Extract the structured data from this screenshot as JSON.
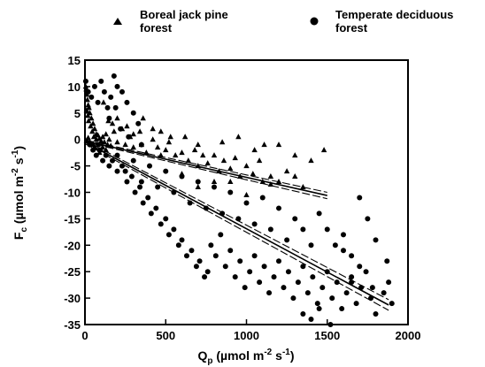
{
  "chart_data": {
    "type": "scatter",
    "xlabel": "Q",
    "xlabel_sub": "p",
    "xlabel_units": " (µmol m",
    "xlabel_exp": "-2",
    "xlabel_units2": " s",
    "xlabel_exp2": "-1",
    "xlabel_close": ")",
    "ylabel": "F",
    "ylabel_sub": "c",
    "ylabel_units": " (µmol m",
    "ylabel_exp": "-2",
    "ylabel_units2": " s",
    "ylabel_exp2": "-1",
    "ylabel_close": ")",
    "xlim": [
      0,
      2000
    ],
    "ylim": [
      -35,
      15
    ],
    "xticks": [
      0,
      500,
      1000,
      1500,
      2000
    ],
    "yticks": [
      15,
      10,
      5,
      0,
      -5,
      -10,
      -15,
      -20,
      -25,
      -30,
      -35
    ],
    "legend_position": "top",
    "colors": {
      "marker": "#000000",
      "line": "#000000"
    },
    "series": [
      {
        "name": "Boreal jack pine forest",
        "name_lines": [
          "Boreal jack pine",
          "forest"
        ],
        "marker": "triangle",
        "points": [
          [
            5,
            10
          ],
          [
            8,
            9.5
          ],
          [
            12,
            8.5
          ],
          [
            15,
            7.5
          ],
          [
            20,
            6.5
          ],
          [
            25,
            6
          ],
          [
            10,
            5.5
          ],
          [
            30,
            5
          ],
          [
            18,
            4.5
          ],
          [
            40,
            4
          ],
          [
            22,
            3.5
          ],
          [
            50,
            3
          ],
          [
            35,
            2.5
          ],
          [
            60,
            2
          ],
          [
            45,
            1.5
          ],
          [
            70,
            1
          ],
          [
            55,
            0.5
          ],
          [
            80,
            0.8
          ],
          [
            90,
            0.2
          ],
          [
            100,
            -0.3
          ],
          [
            110,
            0.5
          ],
          [
            120,
            -0.5
          ],
          [
            130,
            1
          ],
          [
            140,
            -1
          ],
          [
            150,
            0
          ],
          [
            60,
            -1.5
          ],
          [
            80,
            -1
          ],
          [
            100,
            -2
          ],
          [
            30,
            -0.5
          ],
          [
            40,
            -1
          ],
          [
            115,
            7
          ],
          [
            145,
            3.5
          ],
          [
            170,
            3
          ],
          [
            200,
            4
          ],
          [
            230,
            2
          ],
          [
            260,
            2.5
          ],
          [
            280,
            0.5
          ],
          [
            300,
            1
          ],
          [
            340,
            1.5
          ],
          [
            250,
            -1
          ],
          [
            300,
            -1.5
          ],
          [
            350,
            -1
          ],
          [
            380,
            -2.5
          ],
          [
            420,
            0
          ],
          [
            450,
            -1.5
          ],
          [
            470,
            -3
          ],
          [
            500,
            -2
          ],
          [
            530,
            0.5
          ],
          [
            560,
            -3
          ],
          [
            600,
            -2.5
          ],
          [
            640,
            -4
          ],
          [
            680,
            -2
          ],
          [
            700,
            -5
          ],
          [
            730,
            -3
          ],
          [
            760,
            -4.5
          ],
          [
            800,
            -3
          ],
          [
            830,
            -6
          ],
          [
            860,
            -4
          ],
          [
            900,
            -5.5
          ],
          [
            930,
            -3.5
          ],
          [
            960,
            -7
          ],
          [
            1000,
            -5
          ],
          [
            1040,
            -6.5
          ],
          [
            1080,
            -4
          ],
          [
            1100,
            -8
          ],
          [
            1150,
            -7
          ],
          [
            1200,
            -8
          ],
          [
            1250,
            -6
          ],
          [
            1300,
            -7
          ],
          [
            1350,
            -9
          ],
          [
            360,
            4
          ],
          [
            420,
            2
          ],
          [
            470,
            1.5
          ],
          [
            520,
            -0.5
          ],
          [
            620,
            0.5
          ],
          [
            700,
            -1
          ],
          [
            850,
            -0.5
          ],
          [
            950,
            0.5
          ],
          [
            1050,
            -2
          ],
          [
            1110,
            -1
          ],
          [
            1200,
            -1
          ],
          [
            1300,
            -3
          ],
          [
            1400,
            -4
          ],
          [
            1480,
            -2
          ],
          [
            900,
            -8
          ],
          [
            1150,
            -8.5
          ],
          [
            1000,
            -10.5
          ],
          [
            800,
            -8
          ],
          [
            700,
            -9
          ],
          [
            600,
            -6.5
          ],
          [
            200,
            -0.5
          ],
          [
            180,
            1.5
          ],
          [
            160,
            -1.2
          ],
          [
            130,
            -2
          ],
          [
            110,
            -1.5
          ],
          [
            90,
            -2.5
          ],
          [
            70,
            0
          ],
          [
            50,
            -0.8
          ],
          [
            20,
            0.3
          ],
          [
            10,
            -0.2
          ]
        ]
      },
      {
        "name": "Temperate deciduous forest",
        "name_lines": [
          "Temperate deciduous",
          "forest"
        ],
        "marker": "circle",
        "points": [
          [
            5,
            11
          ],
          [
            20,
            9
          ],
          [
            40,
            8
          ],
          [
            60,
            10
          ],
          [
            80,
            7
          ],
          [
            100,
            11
          ],
          [
            120,
            9
          ],
          [
            140,
            6
          ],
          [
            160,
            8
          ],
          [
            180,
            12
          ],
          [
            200,
            10
          ],
          [
            230,
            9
          ],
          [
            190,
            6
          ],
          [
            150,
            4
          ],
          [
            260,
            7
          ],
          [
            300,
            5
          ],
          [
            330,
            3
          ],
          [
            220,
            2
          ],
          [
            270,
            0.5
          ],
          [
            350,
            -1
          ],
          [
            30,
            -1
          ],
          [
            50,
            -2
          ],
          [
            70,
            -3
          ],
          [
            90,
            -2
          ],
          [
            110,
            -4
          ],
          [
            130,
            -3
          ],
          [
            150,
            -5
          ],
          [
            170,
            -4
          ],
          [
            200,
            -6
          ],
          [
            230,
            -5
          ],
          [
            260,
            -8
          ],
          [
            290,
            -7
          ],
          [
            310,
            -10
          ],
          [
            340,
            -9
          ],
          [
            360,
            -12
          ],
          [
            390,
            -11
          ],
          [
            410,
            -14
          ],
          [
            440,
            -13
          ],
          [
            470,
            -16
          ],
          [
            500,
            -15
          ],
          [
            520,
            -18
          ],
          [
            550,
            -17
          ],
          [
            580,
            -20
          ],
          [
            600,
            -19
          ],
          [
            630,
            -22
          ],
          [
            660,
            -21
          ],
          [
            690,
            -24
          ],
          [
            710,
            -23
          ],
          [
            740,
            -26
          ],
          [
            760,
            -25
          ],
          [
            780,
            -20
          ],
          [
            810,
            -22
          ],
          [
            840,
            -18
          ],
          [
            870,
            -24
          ],
          [
            900,
            -21
          ],
          [
            930,
            -26
          ],
          [
            960,
            -23
          ],
          [
            990,
            -28
          ],
          [
            1020,
            -25
          ],
          [
            1050,
            -22
          ],
          [
            1080,
            -27
          ],
          [
            1110,
            -24
          ],
          [
            1140,
            -29
          ],
          [
            1170,
            -26
          ],
          [
            1200,
            -23
          ],
          [
            1230,
            -28
          ],
          [
            1260,
            -25
          ],
          [
            1290,
            -30
          ],
          [
            1320,
            -27
          ],
          [
            1350,
            -24
          ],
          [
            1380,
            -29
          ],
          [
            1410,
            -26
          ],
          [
            1440,
            -31
          ],
          [
            1470,
            -28
          ],
          [
            1500,
            -25
          ],
          [
            1530,
            -30
          ],
          [
            1560,
            -27
          ],
          [
            1590,
            -32
          ],
          [
            1620,
            -29
          ],
          [
            1650,
            -26
          ],
          [
            1680,
            -31
          ],
          [
            1710,
            -28
          ],
          [
            1740,
            -25
          ],
          [
            1770,
            -30
          ],
          [
            1800,
            -33
          ],
          [
            1850,
            -29
          ],
          [
            1880,
            -27
          ],
          [
            1900,
            -31
          ],
          [
            1750,
            -15
          ],
          [
            1700,
            -11
          ],
          [
            1600,
            -18
          ],
          [
            1650,
            -22
          ],
          [
            1550,
            -20
          ],
          [
            1500,
            -17
          ],
          [
            1450,
            -14
          ],
          [
            1400,
            -20
          ],
          [
            1350,
            -17
          ],
          [
            1300,
            -15
          ],
          [
            1250,
            -19
          ],
          [
            1200,
            -13
          ],
          [
            1150,
            -17
          ],
          [
            1100,
            -11
          ],
          [
            1050,
            -16
          ],
          [
            1000,
            -12
          ],
          [
            950,
            -15
          ],
          [
            900,
            -10
          ],
          [
            850,
            -14
          ],
          [
            800,
            -9
          ],
          [
            750,
            -13
          ],
          [
            700,
            -8
          ],
          [
            650,
            -12
          ],
          [
            600,
            -7
          ],
          [
            550,
            -10
          ],
          [
            500,
            -6
          ],
          [
            450,
            -9
          ],
          [
            400,
            -5
          ],
          [
            350,
            -8
          ],
          [
            300,
            -4
          ],
          [
            250,
            -6
          ],
          [
            200,
            -3
          ],
          [
            1450,
            -32
          ],
          [
            1520,
            -35
          ],
          [
            1400,
            -34
          ],
          [
            1350,
            -33
          ],
          [
            1600,
            -21
          ],
          [
            1800,
            -19
          ],
          [
            1870,
            -23
          ],
          [
            1780,
            -28
          ],
          [
            1700,
            -24
          ],
          [
            1650,
            -27
          ]
        ]
      }
    ],
    "regression_lines": [
      {
        "series": "Boreal jack pine forest",
        "x": [
          0,
          1500
        ],
        "y": [
          -0.3,
          -10.6
        ],
        "ci": 0.6
      },
      {
        "series": "Temperate deciduous forest",
        "x": [
          0,
          1880
        ],
        "y": [
          -0.5,
          -31.3
        ],
        "ci": 1.0
      }
    ]
  }
}
